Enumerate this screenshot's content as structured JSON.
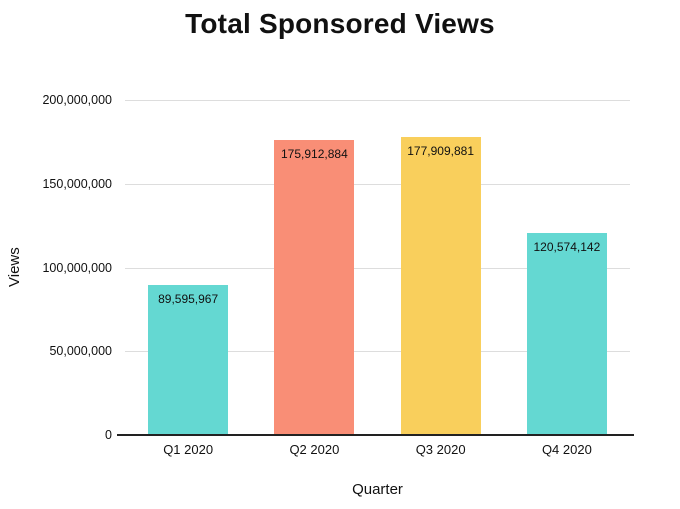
{
  "chart_data": {
    "type": "bar",
    "title": "Total Sponsored Views",
    "xlabel": "Quarter",
    "ylabel": "Views",
    "categories": [
      "Q1 2020",
      "Q2 2020",
      "Q3 2020",
      "Q4 2020"
    ],
    "values": [
      89595967,
      175912884,
      177909881,
      120574142
    ],
    "value_labels": [
      "89,595,967",
      "175,912,884",
      "177,909,881",
      "120,574,142"
    ],
    "bar_colors": [
      "#64d8d2",
      "#f98e76",
      "#f9cf5c",
      "#64d8d2"
    ],
    "ylim": [
      0,
      200000000
    ],
    "ytick_labels": [
      "200,000,000",
      "150,000,000",
      "100,000,000",
      "50,000,000",
      "0"
    ],
    "grid": "horizontal",
    "legend": "none"
  }
}
